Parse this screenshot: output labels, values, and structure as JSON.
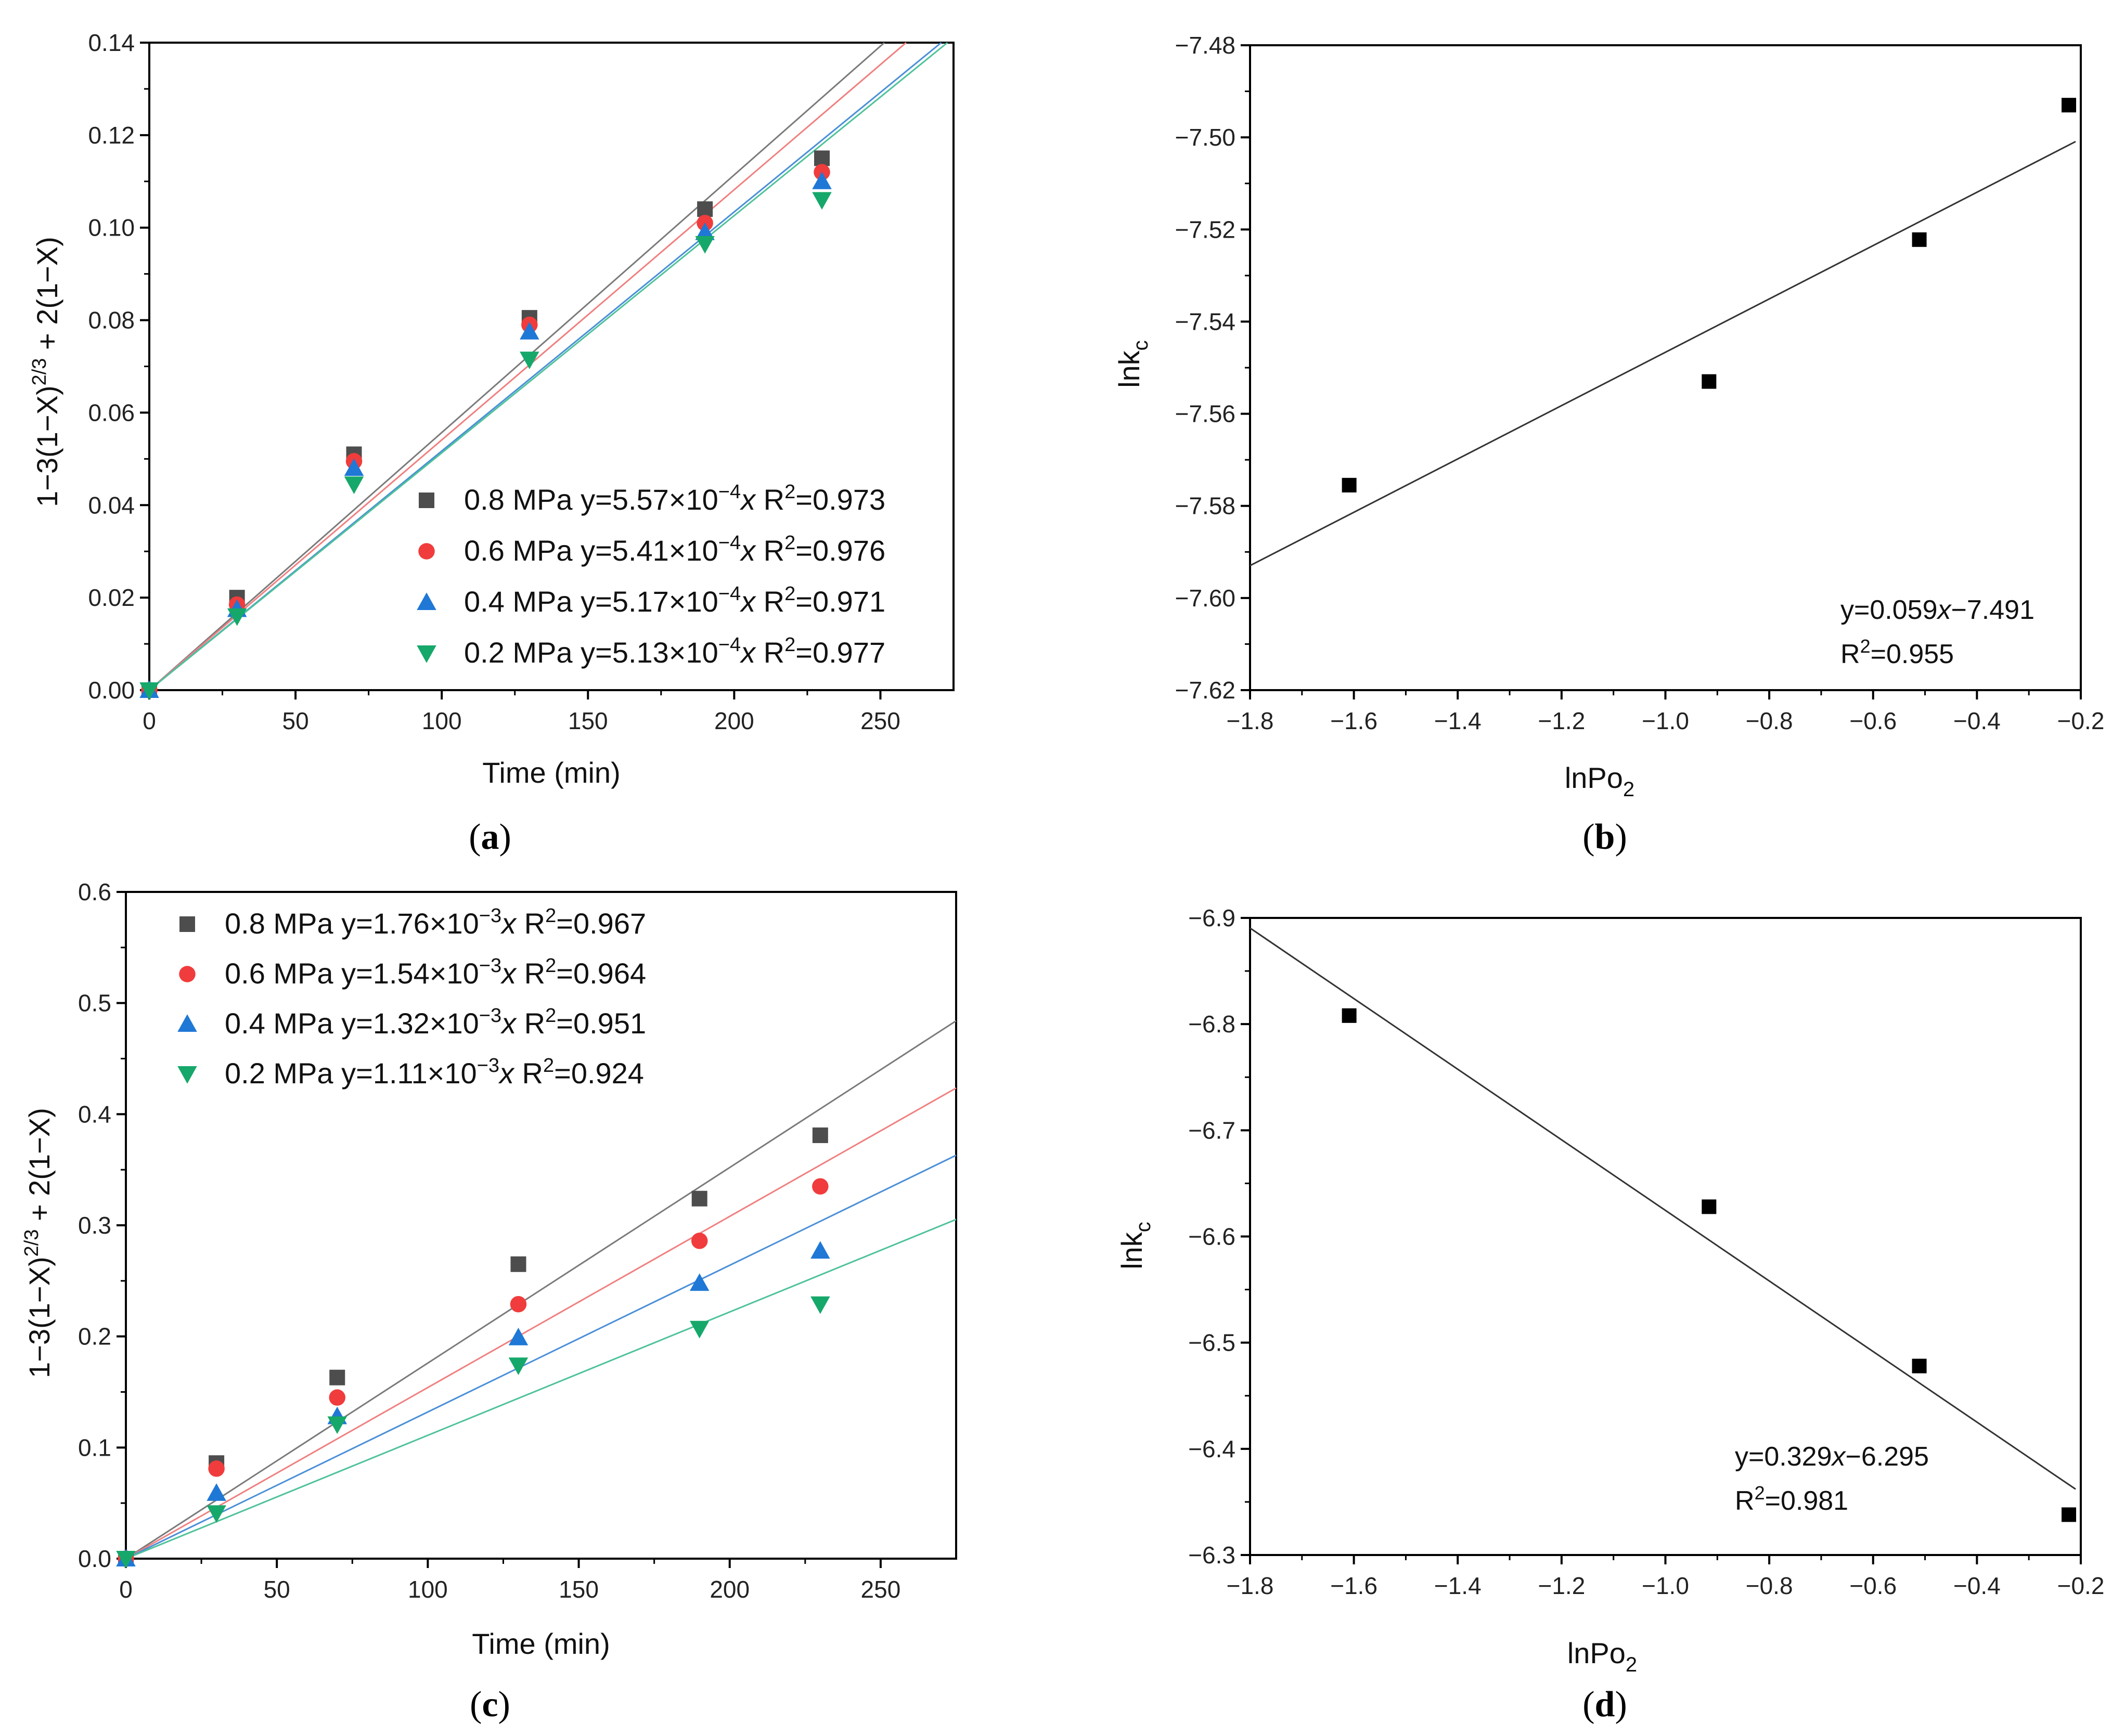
{
  "chart_data": [
    {
      "id": "a",
      "type": "scatter",
      "caption": "a",
      "xlabel": "Time (min)",
      "ylabel_parts": [
        "1−3(1−X)",
        "2/3",
        " + 2(1−X)"
      ],
      "xlim": [
        0,
        275
      ],
      "ylim": [
        0,
        0.14
      ],
      "xticks": [
        "0",
        "50",
        "100",
        "150",
        "200",
        "250"
      ],
      "yticks": [
        "0.00",
        "0.02",
        "0.04",
        "0.06",
        "0.08",
        "0.10",
        "0.12",
        "0.14"
      ],
      "legend_position": "bottom-right",
      "series": [
        {
          "name": "0.8 MPa",
          "marker": "square",
          "color": "#4d4d4d",
          "line_color": "#7a7a7a",
          "slope": 0.000557,
          "legend_pre": "0.8 MPa y=5.57×10",
          "legend_exp": "−4",
          "legend_mid": "x R",
          "legend_exp2": "2",
          "legend_post": "=0.973",
          "x": [
            0,
            30,
            70,
            130,
            190,
            230
          ],
          "y": [
            0,
            0.02,
            0.051,
            0.0805,
            0.104,
            0.115
          ]
        },
        {
          "name": "0.6 MPa",
          "marker": "circle",
          "color": "#f03c3c",
          "line_color": "#f08080",
          "slope": 0.000541,
          "legend_pre": "0.6 MPa y=5.41×10",
          "legend_exp": "−4",
          "legend_mid": "x R",
          "legend_exp2": "2",
          "legend_post": "=0.976",
          "x": [
            0,
            30,
            70,
            130,
            190,
            230
          ],
          "y": [
            0,
            0.0185,
            0.0495,
            0.079,
            0.101,
            0.112
          ]
        },
        {
          "name": "0.4 MPa",
          "marker": "triangle-up",
          "color": "#1f78d6",
          "line_color": "#4a8fd8",
          "slope": 0.000517,
          "legend_pre": "0.4 MPa y=5.17×10",
          "legend_exp": "−4",
          "legend_mid": "x R",
          "legend_exp2": "2",
          "legend_post": "=0.971",
          "x": [
            0,
            30,
            70,
            130,
            190,
            230
          ],
          "y": [
            0,
            0.0175,
            0.048,
            0.0775,
            0.099,
            0.11
          ]
        },
        {
          "name": "0.2 MPa",
          "marker": "triangle-down",
          "color": "#16a86a",
          "line_color": "#4fc29a",
          "slope": 0.000513,
          "legend_pre": "0.2 MPa y=5.13×10",
          "legend_exp": "−4",
          "legend_mid": "x R",
          "legend_exp2": "2",
          "legend_post": "=0.977",
          "x": [
            0,
            30,
            70,
            130,
            190,
            230
          ],
          "y": [
            0,
            0.016,
            0.0445,
            0.0715,
            0.0965,
            0.106
          ]
        }
      ]
    },
    {
      "id": "b",
      "type": "scatter",
      "caption": "b",
      "xlabel_parts": [
        "lnPo",
        "2"
      ],
      "ylabel_parts": [
        "lnk",
        "c"
      ],
      "xlim": [
        -1.8,
        -0.2
      ],
      "ylim": [
        -7.62,
        -7.48
      ],
      "xticks": [
        "−1.8",
        "−1.6",
        "−1.4",
        "−1.2",
        "−1.0",
        "−0.8",
        "−0.6",
        "−0.4",
        "−0.2"
      ],
      "yticks": [
        "−7.62",
        "−7.60",
        "−7.58",
        "−7.56",
        "−7.54",
        "−7.52",
        "−7.50",
        "−7.48"
      ],
      "fit": {
        "slope": 0.059,
        "intercept": -7.491
      },
      "eq_line1_pre": "y=0.059",
      "eq_line1_x": "x",
      "eq_line1_post": "−7.491",
      "eq_line2_pre": "R",
      "eq_line2_exp": "2",
      "eq_line2_post": "=0.955",
      "points": {
        "x": [
          -1.609,
          -0.916,
          -0.511,
          -0.223
        ],
        "y": [
          -7.5755,
          -7.553,
          -7.5222,
          -7.493
        ]
      }
    },
    {
      "id": "c",
      "type": "scatter",
      "caption": "c",
      "xlabel": "Time (min)",
      "ylabel_parts": [
        "1−3(1−X)",
        "2/3",
        " + 2(1−X)"
      ],
      "xlim": [
        0,
        275
      ],
      "ylim": [
        0,
        0.6
      ],
      "xticks": [
        "0",
        "50",
        "100",
        "150",
        "200",
        "250"
      ],
      "yticks": [
        "0.0",
        "0.1",
        "0.2",
        "0.3",
        "0.4",
        "0.5",
        "0.6"
      ],
      "legend_position": "top-left",
      "series": [
        {
          "name": "0.8 MPa",
          "marker": "square",
          "color": "#4d4d4d",
          "line_color": "#7a7a7a",
          "slope": 0.00176,
          "legend_pre": "0.8 MPa y=1.76×10",
          "legend_exp": "−3",
          "legend_mid": "x R",
          "legend_exp2": "2",
          "legend_post": "=0.967",
          "x": [
            0,
            30,
            70,
            130,
            190,
            230
          ],
          "y": [
            0,
            0.086,
            0.163,
            0.265,
            0.324,
            0.381
          ]
        },
        {
          "name": "0.6 MPa",
          "marker": "circle",
          "color": "#f03c3c",
          "line_color": "#f08080",
          "slope": 0.00154,
          "legend_pre": "0.6 MPa y=1.54×10",
          "legend_exp": "−3",
          "legend_mid": "x R",
          "legend_exp2": "2",
          "legend_post": "=0.964",
          "x": [
            0,
            30,
            70,
            130,
            190,
            230
          ],
          "y": [
            0,
            0.081,
            0.145,
            0.229,
            0.286,
            0.335
          ]
        },
        {
          "name": "0.4 MPa",
          "marker": "triangle-up",
          "color": "#1f78d6",
          "line_color": "#4a8fd8",
          "slope": 0.00132,
          "legend_pre": "0.4 MPa y=1.32×10",
          "legend_exp": "−3",
          "legend_mid": "x R",
          "legend_exp2": "2",
          "legend_post": "=0.951",
          "x": [
            0,
            30,
            70,
            130,
            190,
            230
          ],
          "y": [
            0,
            0.059,
            0.128,
            0.199,
            0.248,
            0.277
          ]
        },
        {
          "name": "0.2 MPa",
          "marker": "triangle-down",
          "color": "#16a86a",
          "line_color": "#4fc29a",
          "slope": 0.00111,
          "legend_pre": "0.2 MPa y=1.11×10",
          "legend_exp": "−3",
          "legend_mid": "x R",
          "legend_exp2": "2",
          "legend_post": "=0.924",
          "x": [
            0,
            30,
            70,
            130,
            190,
            230
          ],
          "y": [
            0,
            0.041,
            0.121,
            0.174,
            0.207,
            0.229
          ]
        }
      ]
    },
    {
      "id": "d",
      "type": "scatter",
      "caption": "d",
      "xlabel_parts": [
        "lnPo",
        "2"
      ],
      "ylabel_parts": [
        "lnk",
        "c"
      ],
      "xlim": [
        -1.8,
        -0.2
      ],
      "ylim": [
        -6.3,
        -6.9
      ],
      "xticks": [
        "−1.8",
        "−1.6",
        "−1.4",
        "−1.2",
        "−1.0",
        "−0.8",
        "−0.6",
        "−0.4",
        "−0.2"
      ],
      "yticks": [
        "−6.3",
        "−6.4",
        "−6.5",
        "−6.6",
        "−6.7",
        "−6.8",
        "−6.9"
      ],
      "fit": {
        "slope": 0.329,
        "intercept": -6.295
      },
      "eq_line1_pre": "y=0.329",
      "eq_line1_x": "x",
      "eq_line1_post": "−6.295",
      "eq_line2_pre": "R",
      "eq_line2_exp": "2",
      "eq_line2_post": "=0.981",
      "points": {
        "x": [
          -1.609,
          -0.916,
          -0.511,
          -0.223
        ],
        "y": [
          -6.808,
          -6.628,
          -6.478,
          -6.338
        ]
      }
    }
  ]
}
